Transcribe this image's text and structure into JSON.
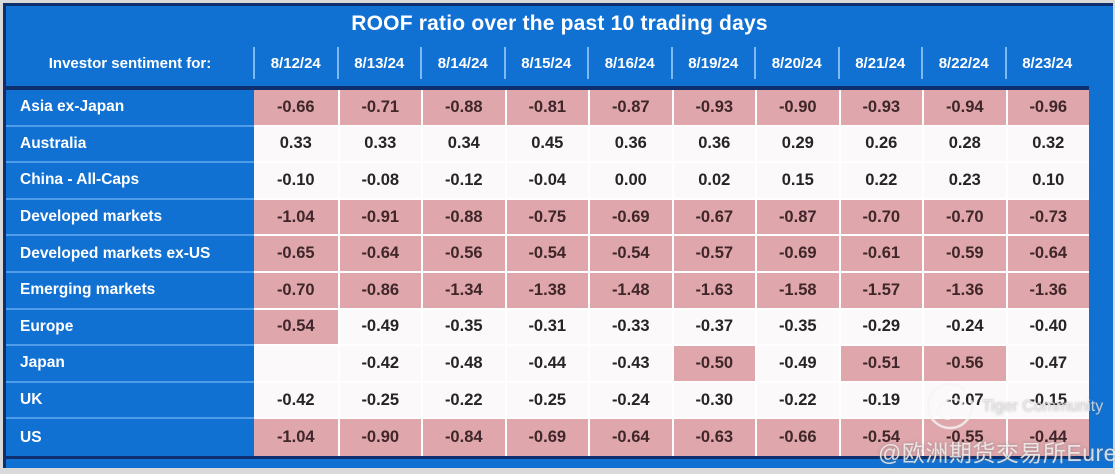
{
  "title": "ROOF ratio over the past 10 trading days",
  "header": {
    "corner_label": "Investor sentiment for:"
  },
  "chart_data": {
    "type": "table",
    "title": "ROOF ratio over the past 10 trading days",
    "row_header": "Investor sentiment for:",
    "columns": [
      "8/12/24",
      "8/13/24",
      "8/14/24",
      "8/15/24",
      "8/16/24",
      "8/19/24",
      "8/20/24",
      "8/21/24",
      "8/22/24",
      "8/23/24"
    ],
    "rows": [
      {
        "label": "Asia ex-Japan",
        "values": [
          "-0.66",
          "-0.71",
          "-0.88",
          "-0.81",
          "-0.87",
          "-0.93",
          "-0.90",
          "-0.93",
          "-0.94",
          "-0.96"
        ],
        "highlighted": [
          1,
          1,
          1,
          1,
          1,
          1,
          1,
          1,
          1,
          1
        ]
      },
      {
        "label": "Australia",
        "values": [
          "0.33",
          "0.33",
          "0.34",
          "0.45",
          "0.36",
          "0.36",
          "0.29",
          "0.26",
          "0.28",
          "0.32"
        ],
        "highlighted": [
          0,
          0,
          0,
          0,
          0,
          0,
          0,
          0,
          0,
          0
        ]
      },
      {
        "label": "China - All-Caps",
        "values": [
          "-0.10",
          "-0.08",
          "-0.12",
          "-0.04",
          "0.00",
          "0.02",
          "0.15",
          "0.22",
          "0.23",
          "0.10"
        ],
        "highlighted": [
          0,
          0,
          0,
          0,
          0,
          0,
          0,
          0,
          0,
          0
        ]
      },
      {
        "label": "Developed markets",
        "values": [
          "-1.04",
          "-0.91",
          "-0.88",
          "-0.75",
          "-0.69",
          "-0.67",
          "-0.87",
          "-0.70",
          "-0.70",
          "-0.73"
        ],
        "highlighted": [
          1,
          1,
          1,
          1,
          1,
          1,
          1,
          1,
          1,
          1
        ]
      },
      {
        "label": "Developed markets ex-US",
        "values": [
          "-0.65",
          "-0.64",
          "-0.56",
          "-0.54",
          "-0.54",
          "-0.57",
          "-0.69",
          "-0.61",
          "-0.59",
          "-0.64"
        ],
        "highlighted": [
          1,
          1,
          1,
          1,
          1,
          1,
          1,
          1,
          1,
          1
        ]
      },
      {
        "label": "Emerging markets",
        "values": [
          "-0.70",
          "-0.86",
          "-1.34",
          "-1.38",
          "-1.48",
          "-1.63",
          "-1.58",
          "-1.57",
          "-1.36",
          "-1.36"
        ],
        "highlighted": [
          1,
          1,
          1,
          1,
          1,
          1,
          1,
          1,
          1,
          1
        ]
      },
      {
        "label": "Europe",
        "values": [
          "-0.54",
          "-0.49",
          "-0.35",
          "-0.31",
          "-0.33",
          "-0.37",
          "-0.35",
          "-0.29",
          "-0.24",
          "-0.40"
        ],
        "highlighted": [
          1,
          0,
          0,
          0,
          0,
          0,
          0,
          0,
          0,
          0
        ]
      },
      {
        "label": "Japan",
        "values": [
          "",
          "-0.42",
          "-0.48",
          "-0.44",
          "-0.43",
          "-0.50",
          "-0.49",
          "-0.51",
          "-0.56",
          "-0.47"
        ],
        "highlighted": [
          0,
          0,
          0,
          0,
          0,
          1,
          0,
          1,
          1,
          0
        ]
      },
      {
        "label": "UK",
        "values": [
          "-0.42",
          "-0.25",
          "-0.22",
          "-0.25",
          "-0.24",
          "-0.30",
          "-0.22",
          "-0.19",
          "-0.07",
          "-0.15"
        ],
        "highlighted": [
          0,
          0,
          0,
          0,
          0,
          0,
          0,
          0,
          0,
          0
        ]
      },
      {
        "label": "US",
        "values": [
          "-1.04",
          "-0.90",
          "-0.84",
          "-0.69",
          "-0.64",
          "-0.63",
          "-0.66",
          "-0.54",
          "-0.55",
          "-0.44"
        ],
        "highlighted": [
          1,
          1,
          1,
          1,
          1,
          1,
          1,
          1,
          1,
          1
        ]
      }
    ]
  },
  "watermark": {
    "logo": "tiger-logo-icon",
    "community": "Tiger Community",
    "handle": "@欧洲期货交易所Eurex"
  },
  "colors": {
    "frame_blue": "#1171d3",
    "navy_border": "#0d2f6d",
    "highlight_pink": "#dfa6ab",
    "cell_white": "#fbf9f9",
    "label_separator": "#4f9de9",
    "header_text": "#ffffff",
    "value_text": "#272326",
    "highlight_value_text": "#3e2629",
    "page_edge": "#d9d9d9"
  }
}
